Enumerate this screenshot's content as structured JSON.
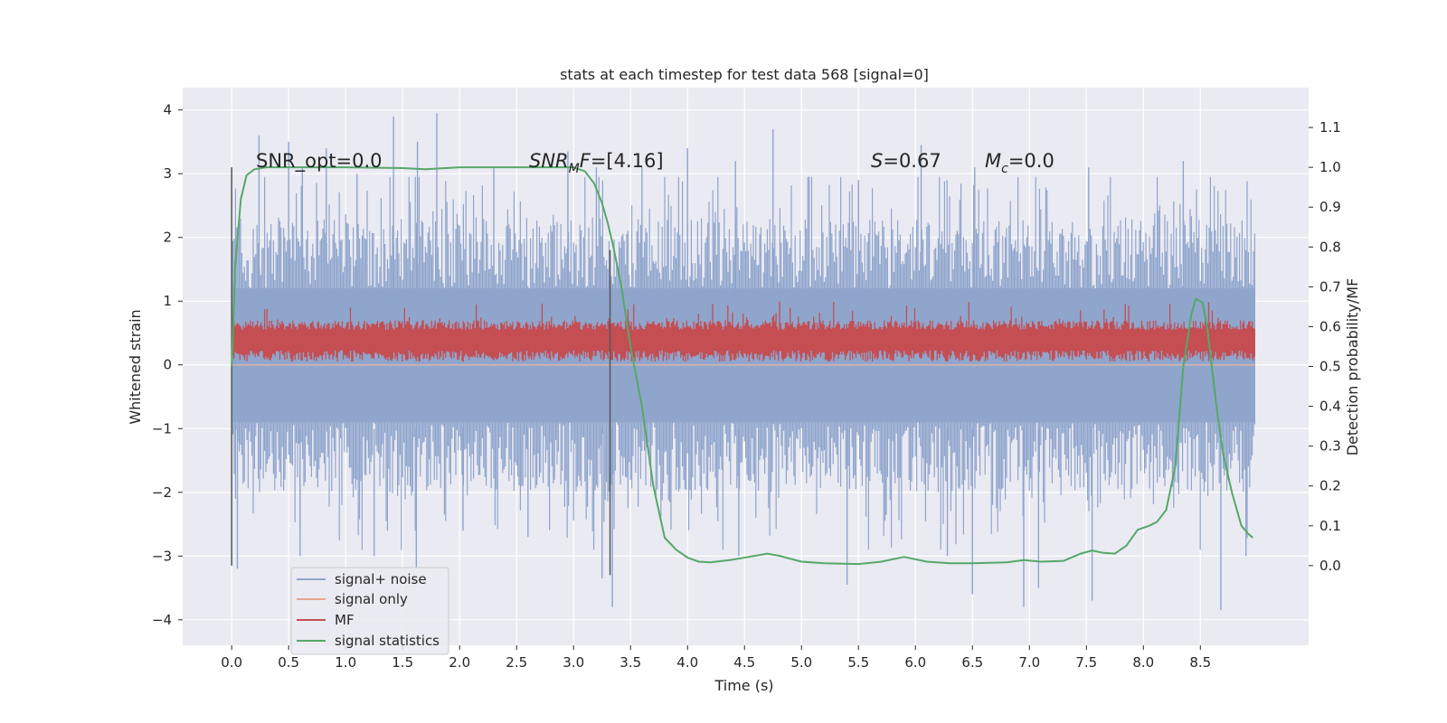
{
  "chart_data": {
    "type": "line",
    "title": "stats at each timestep for test data 568 [signal=0]",
    "xlabel": "Time (s)",
    "ylabel_left": "Whitened strain",
    "ylabel_right": "Detection probability/MF",
    "xlim": [
      -0.43,
      9.45
    ],
    "ylim_left": [
      -4.4,
      4.35
    ],
    "ylim_right": [
      -0.2,
      1.2
    ],
    "x_ticks": [
      0.0,
      0.5,
      1.0,
      1.5,
      2.0,
      2.5,
      3.0,
      3.5,
      4.0,
      4.5,
      5.0,
      5.5,
      6.0,
      6.5,
      7.0,
      7.5,
      8.0,
      8.5
    ],
    "x_tick_labels": [
      "0.0",
      "0.5",
      "1.0",
      "1.5",
      "2.0",
      "2.5",
      "3.0",
      "3.5",
      "4.0",
      "4.5",
      "5.0",
      "5.5",
      "6.0",
      "6.5",
      "7.0",
      "7.5",
      "8.0",
      "8.5"
    ],
    "y_left_ticks": [
      -4,
      -3,
      -2,
      -1,
      0,
      1,
      2,
      3,
      4
    ],
    "y_left_tick_labels": [
      "−4",
      "−3",
      "−2",
      "−1",
      "0",
      "1",
      "2",
      "3",
      "4"
    ],
    "y_right_ticks": [
      0.0,
      0.1,
      0.2,
      0.3,
      0.4,
      0.5,
      0.6,
      0.7,
      0.8,
      0.9,
      1.0,
      1.1
    ],
    "y_right_tick_labels": [
      "0.0",
      "0.1",
      "0.2",
      "0.3",
      "0.4",
      "0.5",
      "0.6",
      "0.7",
      "0.8",
      "0.9",
      "1.0",
      "1.1"
    ],
    "grid": true,
    "legend_position": "lower-left",
    "annotations": {
      "snr_opt": {
        "prefix": "SNR_opt=",
        "value": "0.0"
      },
      "snr_mf": {
        "symbol": "SNR",
        "subscript": "M",
        "suffix": "F",
        "value": "=[4.16]"
      },
      "s_stat": {
        "symbol": "S",
        "value": "=0.67"
      },
      "mc": {
        "symbol": "M",
        "subscript": "c",
        "value": "=0.0"
      }
    },
    "vertical_markers": [
      {
        "name": "start-marker",
        "x": 0.0,
        "ymin": -3.15,
        "ymax": 3.1
      },
      {
        "name": "mf-peak-marker",
        "x": 3.32,
        "ymin": -3.3,
        "ymax": 1.8
      }
    ],
    "series": [
      {
        "name": "signal+ noise",
        "axis": "left",
        "color": "#8fa5cc",
        "kind": "noise",
        "x_range": [
          0.0,
          8.98
        ],
        "band": [
          -0.9,
          1.2
        ],
        "upper_spikes": [
          {
            "x": 0.24,
            "y": 3.6
          },
          {
            "x": 0.5,
            "y": 3.5
          },
          {
            "x": 0.62,
            "y": 3.1
          },
          {
            "x": 0.83,
            "y": 3.4
          },
          {
            "x": 1.1,
            "y": 3.0
          },
          {
            "x": 1.42,
            "y": 3.9
          },
          {
            "x": 1.63,
            "y": 3.5
          },
          {
            "x": 1.8,
            "y": 3.95
          },
          {
            "x": 2.3,
            "y": 3.1
          },
          {
            "x": 2.95,
            "y": 3.35
          },
          {
            "x": 3.2,
            "y": 3.1
          },
          {
            "x": 3.6,
            "y": 3.1
          },
          {
            "x": 4.0,
            "y": 3.4
          },
          {
            "x": 4.42,
            "y": 3.2
          },
          {
            "x": 4.75,
            "y": 3.7
          },
          {
            "x": 5.5,
            "y": 2.9
          },
          {
            "x": 6.05,
            "y": 3.45
          },
          {
            "x": 6.52,
            "y": 3.1
          },
          {
            "x": 7.52,
            "y": 3.1
          },
          {
            "x": 8.35,
            "y": 3.2
          }
        ],
        "lower_spikes": [
          {
            "x": 0.05,
            "y": -3.2
          },
          {
            "x": 0.6,
            "y": -3.0
          },
          {
            "x": 1.25,
            "y": -3.0
          },
          {
            "x": 1.62,
            "y": -3.2
          },
          {
            "x": 2.03,
            "y": -2.6
          },
          {
            "x": 2.6,
            "y": -2.7
          },
          {
            "x": 3.25,
            "y": -3.35
          },
          {
            "x": 3.34,
            "y": -3.8
          },
          {
            "x": 4.45,
            "y": -3.0
          },
          {
            "x": 5.4,
            "y": -3.45
          },
          {
            "x": 6.28,
            "y": -3.0
          },
          {
            "x": 6.5,
            "y": -3.6
          },
          {
            "x": 6.95,
            "y": -3.8
          },
          {
            "x": 7.08,
            "y": -3.5
          },
          {
            "x": 7.55,
            "y": -3.7
          },
          {
            "x": 8.68,
            "y": -3.85
          },
          {
            "x": 8.9,
            "y": -3.0
          }
        ]
      },
      {
        "name": "signal only",
        "axis": "left",
        "color": "#e8a58f",
        "kind": "flat",
        "value": 0.0
      },
      {
        "name": "MF",
        "axis": "left",
        "color": "#c44e52",
        "kind": "noise",
        "x_range": [
          0.0,
          8.98
        ],
        "band": [
          0.05,
          0.6
        ],
        "peak_max": 1.0
      },
      {
        "name": "signal statistics",
        "axis": "right",
        "color": "#55a868",
        "kind": "line",
        "x": [
          0.0,
          0.03,
          0.08,
          0.13,
          0.2,
          0.3,
          0.5,
          1.0,
          1.5,
          1.7,
          2.0,
          2.5,
          3.0,
          3.1,
          3.18,
          3.25,
          3.3,
          3.35,
          3.42,
          3.5,
          3.6,
          3.7,
          3.8,
          3.9,
          4.0,
          4.1,
          4.2,
          4.4,
          4.6,
          4.7,
          4.8,
          5.0,
          5.2,
          5.5,
          5.7,
          5.9,
          6.1,
          6.3,
          6.5,
          6.8,
          6.95,
          7.1,
          7.3,
          7.45,
          7.55,
          7.65,
          7.75,
          7.85,
          7.95,
          8.05,
          8.12,
          8.2,
          8.28,
          8.35,
          8.42,
          8.46,
          8.52,
          8.56,
          8.6,
          8.65,
          8.7,
          8.78,
          8.86,
          8.92,
          8.96
        ],
        "y": [
          0.5,
          0.75,
          0.92,
          0.98,
          0.995,
          1.0,
          1.0,
          1.0,
          0.998,
          0.995,
          1.0,
          1.0,
          1.0,
          0.99,
          0.96,
          0.91,
          0.86,
          0.8,
          0.7,
          0.55,
          0.4,
          0.2,
          0.07,
          0.04,
          0.02,
          0.01,
          0.008,
          0.015,
          0.025,
          0.03,
          0.025,
          0.01,
          0.006,
          0.004,
          0.01,
          0.022,
          0.01,
          0.006,
          0.006,
          0.008,
          0.014,
          0.01,
          0.012,
          0.03,
          0.038,
          0.032,
          0.03,
          0.05,
          0.09,
          0.1,
          0.11,
          0.14,
          0.25,
          0.5,
          0.63,
          0.67,
          0.66,
          0.6,
          0.5,
          0.38,
          0.28,
          0.18,
          0.1,
          0.08,
          0.07
        ]
      }
    ]
  }
}
